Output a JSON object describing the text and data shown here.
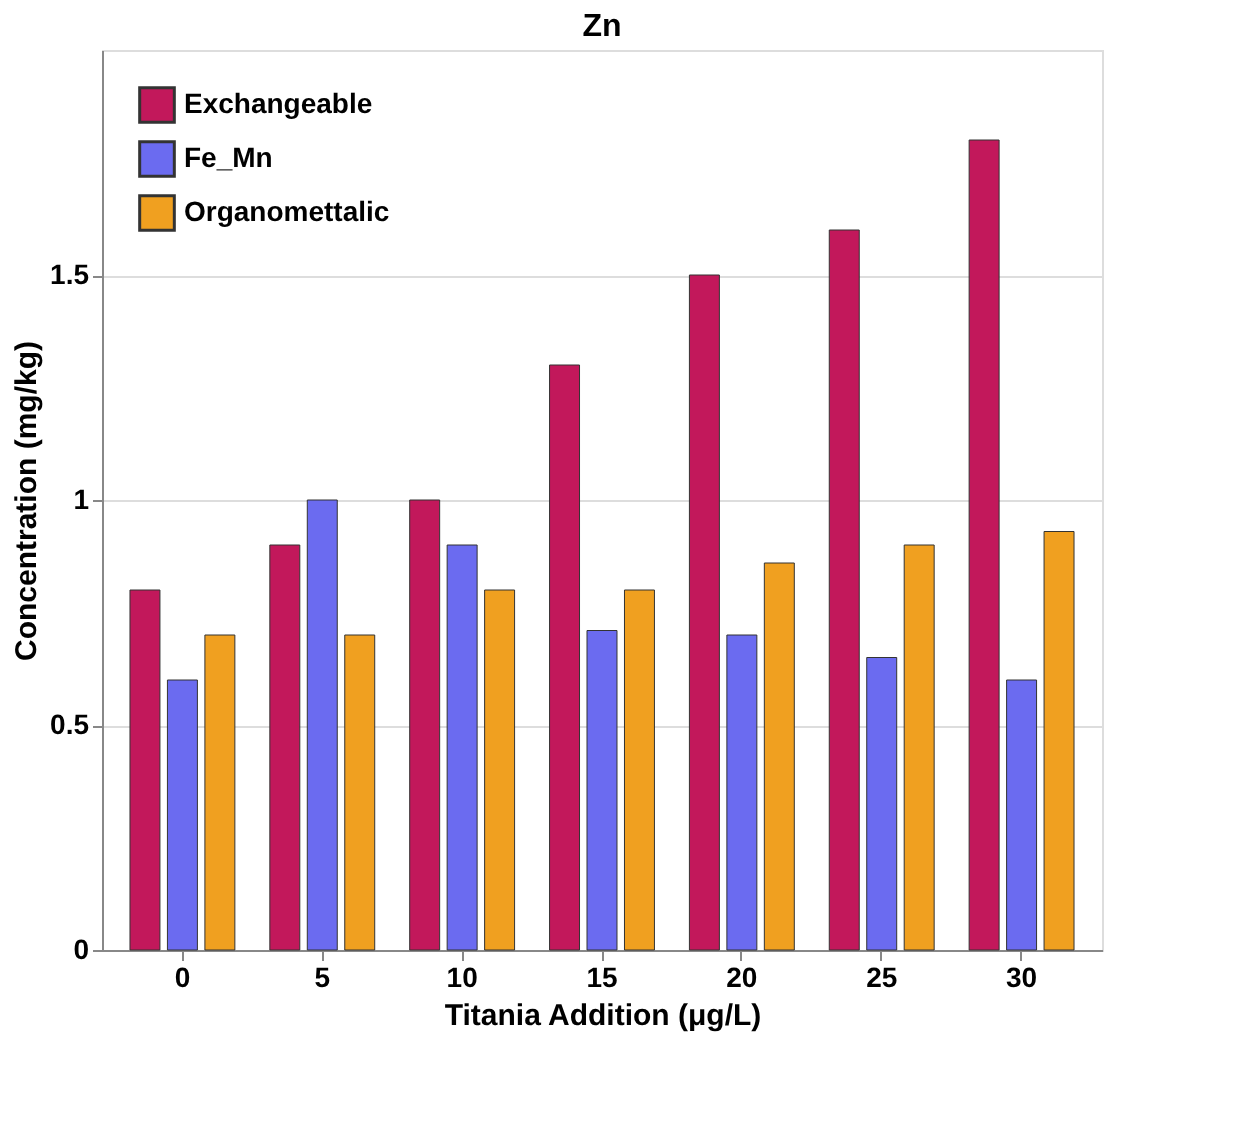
{
  "chart_data": {
    "type": "bar",
    "title": "Zn",
    "xlabel": "Titania Addition (μg/L)",
    "ylabel": "Concentration (mg/kg)",
    "categories": [
      "0",
      "5",
      "10",
      "15",
      "20",
      "25",
      "30"
    ],
    "series": [
      {
        "name": "Exchangeable",
        "color": "#c2185b",
        "values": [
          0.8,
          0.9,
          1.0,
          1.3,
          1.5,
          1.6,
          1.8
        ]
      },
      {
        "name": "Fe_Mn",
        "color": "#6b6bf0",
        "values": [
          0.6,
          1.0,
          0.9,
          0.71,
          0.7,
          0.65,
          0.6
        ]
      },
      {
        "name": "Organomettalic",
        "color": "#f0a020",
        "values": [
          0.7,
          0.7,
          0.8,
          0.8,
          0.86,
          0.9,
          0.93
        ]
      }
    ],
    "ylim": [
      0,
      2
    ],
    "yticks": [
      0,
      0.5,
      1,
      1.5
    ],
    "grid": "y",
    "legend": "top left"
  }
}
